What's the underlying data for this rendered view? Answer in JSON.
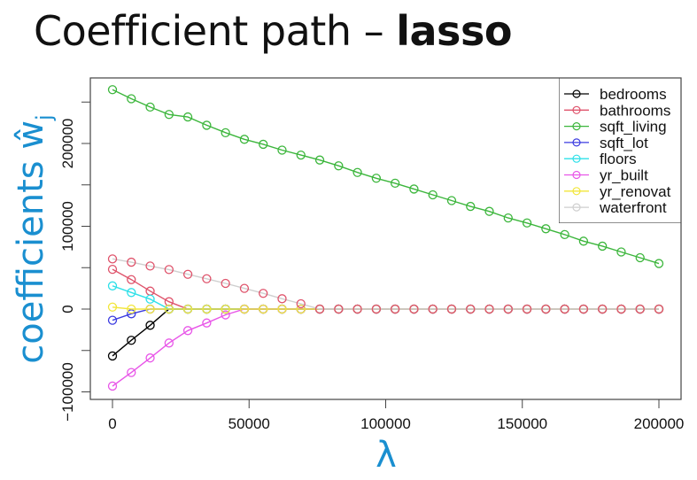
{
  "slide": {
    "title_regular": "Coefficient path – ",
    "title_bold": "lasso"
  },
  "chart_data": {
    "type": "line",
    "title": "Coefficient path – lasso",
    "xlabel": "λ",
    "ylabel": "coefficients ŵj",
    "ylabel_main": "coefficients ŵ",
    "ylabel_sub": "j",
    "xlim": [
      0,
      200000
    ],
    "ylim": [
      -100000,
      265000
    ],
    "x_ticks": [
      0,
      50000,
      100000,
      150000,
      200000
    ],
    "x_tick_labels": [
      "0",
      "50000",
      "100000",
      "150000",
      "200000"
    ],
    "y_ticks": [
      -100000,
      0,
      100000,
      200000
    ],
    "y_tick_labels": [
      "-100000",
      "0",
      "100000",
      "200000"
    ],
    "y_minor_ticks": [
      -50000,
      50000,
      150000,
      250000
    ],
    "grid": false,
    "legend_position": "top-right",
    "marker": "open-circle",
    "x": [
      0,
      6897,
      13793,
      20690,
      27586,
      34483,
      41379,
      48276,
      55172,
      62069,
      68966,
      75862,
      82759,
      89655,
      96552,
      103448,
      110345,
      117241,
      124138,
      131034,
      137931,
      144828,
      151724,
      158621,
      165517,
      172414,
      179310,
      186207,
      193103,
      200000
    ],
    "series": [
      {
        "name": "bedrooms",
        "color": "#000000",
        "values": [
          -56600,
          -37700,
          -19600,
          0,
          0,
          0,
          0,
          0,
          0,
          0,
          0,
          0,
          0,
          0,
          0,
          0,
          0,
          0,
          0,
          0,
          0,
          0,
          0,
          0,
          0,
          0,
          0,
          0,
          0,
          0
        ]
      },
      {
        "name": "bathrooms",
        "color": "#df536b",
        "values": [
          48000,
          35600,
          21700,
          8900,
          0,
          0,
          0,
          0,
          0,
          0,
          0,
          0,
          0,
          0,
          0,
          0,
          0,
          0,
          0,
          0,
          0,
          0,
          0,
          0,
          0,
          0,
          0,
          0,
          0,
          0
        ]
      },
      {
        "name": "sqft_living",
        "color": "#3cb63c",
        "values": [
          265000,
          254000,
          244000,
          235000,
          232000,
          222000,
          213000,
          205000,
          199000,
          192000,
          186000,
          180000,
          173000,
          165000,
          158000,
          152000,
          145000,
          138000,
          131000,
          124000,
          118000,
          110000,
          104000,
          97000,
          90000,
          82000,
          76000,
          69000,
          62000,
          55000
        ]
      },
      {
        "name": "sqft_lot",
        "color": "#3b3be0",
        "values": [
          -13500,
          -5700,
          0,
          0,
          0,
          0,
          0,
          0,
          0,
          0,
          0,
          0,
          0,
          0,
          0,
          0,
          0,
          0,
          0,
          0,
          0,
          0,
          0,
          0,
          0,
          0,
          0,
          0,
          0,
          0
        ]
      },
      {
        "name": "floors",
        "color": "#2ee0e8",
        "values": [
          28000,
          20000,
          12000,
          0,
          0,
          0,
          0,
          0,
          0,
          0,
          0,
          0,
          0,
          0,
          0,
          0,
          0,
          0,
          0,
          0,
          0,
          0,
          0,
          0,
          0,
          0,
          0,
          0,
          0,
          0
        ]
      },
      {
        "name": "yr_built",
        "color": "#e856e8",
        "values": [
          -93000,
          -76600,
          -59000,
          -41000,
          -26000,
          -16800,
          -7000,
          0,
          0,
          0,
          0,
          0,
          0,
          0,
          0,
          0,
          0,
          0,
          0,
          0,
          0,
          0,
          0,
          0,
          0,
          0,
          0,
          0,
          0,
          0
        ]
      },
      {
        "name": "yr_renovated",
        "label": "yr_renovat",
        "color": "#f2e63a",
        "values": [
          2400,
          0,
          0,
          0,
          0,
          0,
          0,
          0,
          0,
          0,
          0,
          0,
          0,
          0,
          0,
          0,
          0,
          0,
          0,
          0,
          0,
          0,
          0,
          0,
          0,
          0,
          0,
          0,
          0,
          0
        ]
      },
      {
        "name": "waterfront",
        "color": "#cfcfcf",
        "marker_color": "#df536b",
        "values": [
          60600,
          56600,
          52000,
          47700,
          42000,
          36600,
          31000,
          25000,
          19000,
          12500,
          6400,
          0,
          0,
          0,
          0,
          0,
          0,
          0,
          0,
          0,
          0,
          0,
          0,
          0,
          0,
          0,
          0,
          0,
          0,
          0
        ]
      }
    ],
    "legend": [
      "bedrooms",
      "bathrooms",
      "sqft_living",
      "sqft_lot",
      "floors",
      "yr_built",
      "yr_renovat",
      "waterfront"
    ]
  }
}
